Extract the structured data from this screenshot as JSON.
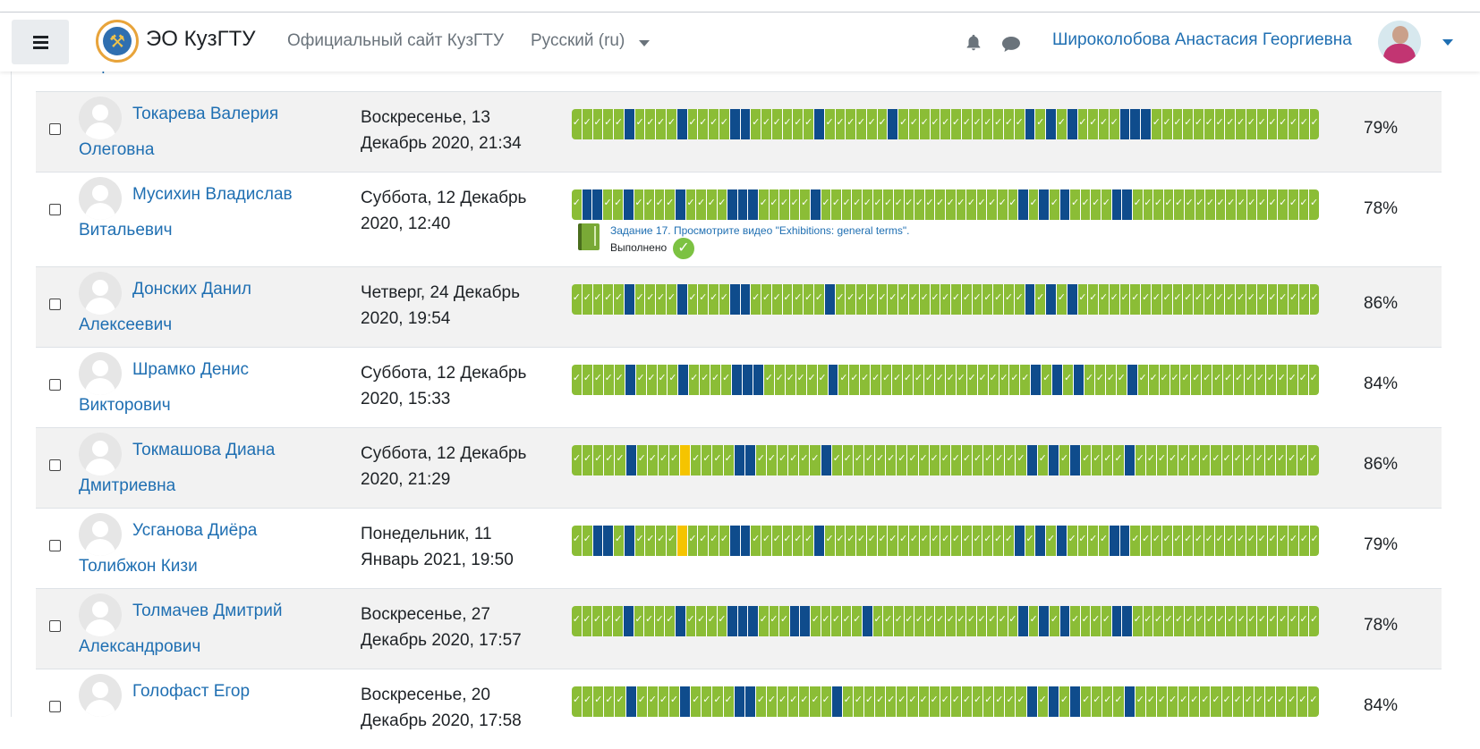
{
  "navbar": {
    "brand": "ЭО КузГТУ",
    "official_site": "Официальный сайт КузГТУ",
    "language": "Русский (ru)",
    "user_name": "Широколобова Анастасия Георгиевна"
  },
  "partial_row_name": "Сергеевич",
  "tooltip": {
    "title": "Задание 17. Просмотрите видео \"Exhibitions: general terms\".",
    "status": "Выполнено"
  },
  "rows": [
    {
      "name_line1": "Токарева Валерия",
      "name_line2": "Олеговна",
      "date_line1": "Воскресенье, 13",
      "date_line2": "Декабрь 2020, 21:34",
      "percent": "79%",
      "progress": "cccccnccccnccccnnccccccnccccccnccccccccccccncncnccccnnncccccccccccccccc"
    },
    {
      "name_line1": "Мусихин Владислав",
      "name_line2": "Витальевич",
      "date_line1": "Суббота, 12 Декабрь",
      "date_line2": "2020, 12:40",
      "percent": "78%",
      "progress": "cnnccnccccnccccnnncccccncccccccccccccccccccncncnccccnncccccccccccccccccc"
    },
    {
      "name_line1": "Донских Данил",
      "name_line2": "Алексеевич",
      "date_line1": "Четверг, 24 Декабрь",
      "date_line2": "2020, 19:54",
      "percent": "86%",
      "progress": "cccccnccccnccccnncccccccnccccccccccccccccccncncnccccccccccccccccccccccc"
    },
    {
      "name_line1": "Шрамко Денис",
      "name_line2": "Викторович",
      "date_line1": "Суббота, 12 Декабрь",
      "date_line2": "2020, 15:33",
      "percent": "84%",
      "progress": "cccccnccccnccccnnnccccccnccccccccccccccccccncncnccccnccccccccccccccccc"
    },
    {
      "name_line1": "Токмашова Диана",
      "name_line2": "Дмитриевна",
      "date_line1": "Суббота, 12 Декабрь",
      "date_line2": "2020, 21:29",
      "percent": "86%",
      "progress": "cccccnccccpccccnnccccccnccccccccccccccccccncncnccccnccccccccccccccccc"
    },
    {
      "name_line1": "Усганова Диёра",
      "name_line2": "Толибжон Кизи",
      "date_line1": "Понедельник, 11",
      "date_line2": "Январь 2021, 19:50",
      "percent": "79%",
      "progress": "ccnncnccccpccccnnccccccnccccccccccccccccccncncnccccnncccccccccccccccccc"
    },
    {
      "name_line1": "Толмачев Дмитрий",
      "name_line2": "Александрович",
      "date_line1": "Воскресенье, 27",
      "date_line2": "Декабрь 2020, 17:57",
      "percent": "78%",
      "progress": "cccccnccccnccccnnncccnncccccnccccccccccccccncncnccccnncccccccccccccccccc"
    },
    {
      "name_line1": "Голофаст Егор",
      "name_line2": "",
      "date_line1": "Воскресенье, 20",
      "date_line2": "Декабрь 2020, 17:58",
      "percent": "84%",
      "progress": "cccccnccccnccccnncccccccncccccccccccccccccncncnccccnccccccccccccccccc"
    }
  ],
  "colors": {
    "complete": "#8bbd36",
    "not_complete": "#0f4c8c",
    "partial": "#f5c400",
    "link": "#1f6fb2"
  }
}
